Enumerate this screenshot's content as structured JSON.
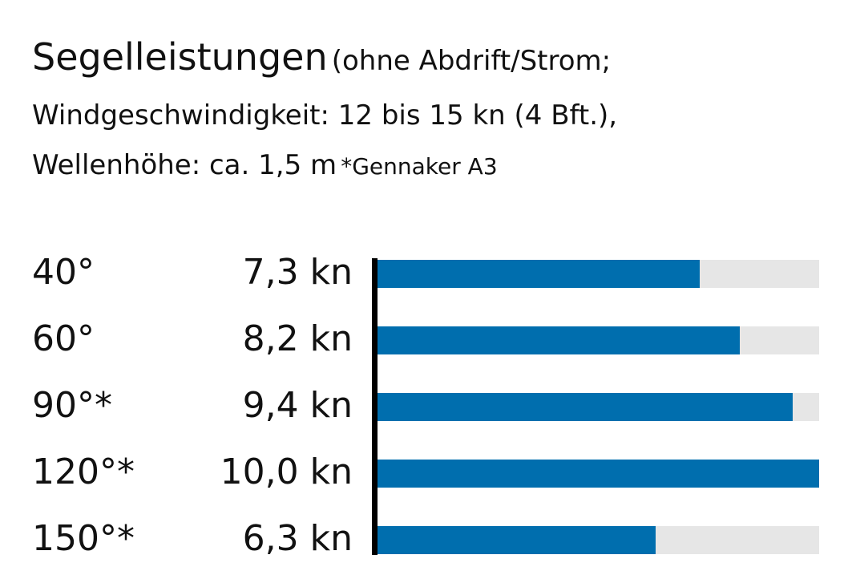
{
  "title": {
    "main": "Segelleistungen",
    "line1_rest": "(ohne Abdrift/Strom;",
    "line2": "Windgeschwindigkeit: 12 bis 15 kn (4 Bft.),",
    "line3": "Wellenhöhe: ca. 1,5 m",
    "note": "*Gennaker A3"
  },
  "chart_data": {
    "type": "bar",
    "orientation": "horizontal",
    "categories": [
      "40°",
      "60°",
      "90°*",
      "120°*",
      "150°*"
    ],
    "values": [
      7.3,
      8.2,
      9.4,
      10.0,
      6.3
    ],
    "value_labels": [
      "7,3 kn",
      "8,2 kn",
      "9,4 kn",
      "10,0 kn",
      "6,3 kn"
    ],
    "unit": "kn",
    "xlim": [
      0,
      10
    ],
    "grid": false,
    "colors": {
      "bar": "#006eae",
      "track": "#e6e6e6",
      "axis": "#000000"
    }
  }
}
